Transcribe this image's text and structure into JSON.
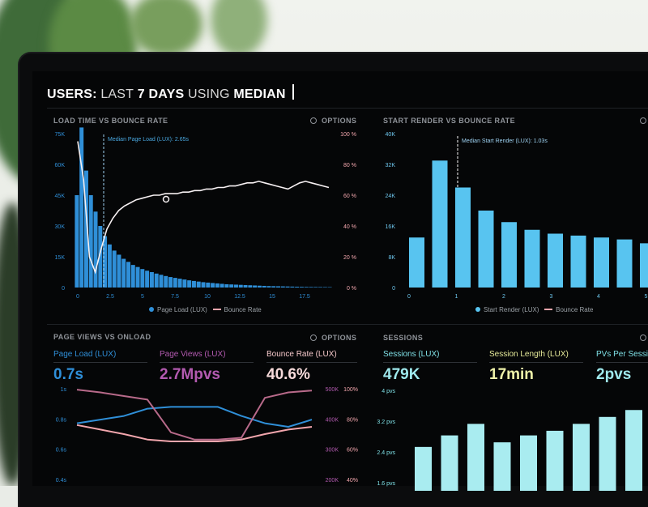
{
  "header": {
    "part1": "USERS:",
    "part2": "LAST",
    "part3": "7 DAYS",
    "part4": "USING",
    "part5": "MEDIAN"
  },
  "options_label": "OPTIONS",
  "panel_load": {
    "title": "LOAD TIME VS BOUNCE RATE",
    "annotation": "Median Page Load (LUX): 2.65s",
    "legend_bar": "Page Load (LUX)",
    "legend_line": "Bounce Rate"
  },
  "panel_render": {
    "title": "START RENDER VS BOUNCE RATE",
    "annotation": "Median Start Render (LUX): 1.03s",
    "legend_bar": "Start Render (LUX)",
    "legend_line": "Bounce Rate"
  },
  "panel_pageviews": {
    "title": "PAGE VIEWS VS ONLOAD",
    "metrics": [
      {
        "label": "Page Load (LUX)",
        "value": "0.7s",
        "color": "#2f8fd8"
      },
      {
        "label": "Page Views (LUX)",
        "value": "2.7Mpvs",
        "color": "#b35ab0"
      },
      {
        "label": "Bounce Rate (LUX)",
        "value": "40.6%",
        "color": "#f2c9c9"
      }
    ]
  },
  "panel_sessions": {
    "title": "SESSIONS",
    "metrics": [
      {
        "label": "Sessions (LUX)",
        "value": "479K",
        "color": "#7fe0e6"
      },
      {
        "label": "Session Length (LUX)",
        "value": "17min",
        "color": "#e6ea9a"
      },
      {
        "label": "PVs Per Sessio",
        "value": "2pvs",
        "color": "#7fe0e6"
      }
    ]
  },
  "chart_data": [
    {
      "type": "bar",
      "title": "LOAD TIME VS BOUNCE RATE",
      "x_ticks": [
        "0",
        "2.5",
        "5",
        "7.5",
        "10",
        "12.5",
        "15",
        "17.5"
      ],
      "y_left_ticks": [
        "0",
        "15K",
        "30K",
        "45K",
        "60K",
        "75K"
      ],
      "y_right_ticks": [
        "0 %",
        "20 %",
        "40 %",
        "60 %",
        "80 %",
        "100 %"
      ],
      "bar_values": [
        45000,
        78000,
        57000,
        45000,
        37000,
        30000,
        25000,
        21000,
        18000,
        16000,
        14000,
        12500,
        11000,
        10000,
        9000,
        8200,
        7500,
        6800,
        6200,
        5600,
        5100,
        4700,
        4300,
        3900,
        3500,
        3200,
        2900,
        2600,
        2400,
        2200,
        2000,
        1800,
        1600,
        1500,
        1400,
        1300,
        1200,
        1100,
        1000,
        900,
        800,
        700,
        650,
        600,
        550,
        500,
        450,
        400,
        350,
        300,
        280,
        260,
        240,
        220,
        200
      ],
      "bounce_rate": [
        95,
        70,
        20,
        10,
        25,
        38,
        45,
        50,
        53,
        55,
        57,
        58,
        59,
        60,
        60,
        61,
        61,
        61,
        62,
        62,
        63,
        63,
        64,
        64,
        65,
        65,
        66,
        66,
        67,
        68,
        68,
        69,
        68,
        67,
        66,
        65,
        64,
        66,
        68,
        69,
        68,
        67,
        66,
        65
      ],
      "ylim_left": [
        0,
        75000
      ],
      "ylim_right": [
        0,
        100
      ],
      "legend": [
        "Page Load (LUX)",
        "Bounce Rate"
      ]
    },
    {
      "type": "bar",
      "title": "START RENDER VS BOUNCE RATE",
      "x_ticks": [
        "0",
        "1",
        "2",
        "3",
        "4",
        "5"
      ],
      "y_left_ticks": [
        "0",
        "8K",
        "16K",
        "24K",
        "32K",
        "40K"
      ],
      "bar_values": [
        13000,
        33000,
        26000,
        20000,
        17000,
        15000,
        14000,
        13500,
        13000,
        12500,
        11500
      ],
      "ylim_left": [
        0,
        40000
      ],
      "legend": [
        "Start Render (LUX)",
        "Bounce Rate"
      ]
    },
    {
      "type": "line",
      "title": "PAGE VIEWS VS ONLOAD",
      "y_left_ticks": [
        "1s",
        "0.8s",
        "0.6s",
        "0.4s"
      ],
      "y_right_ticks_1": [
        "500K",
        "400K",
        "300K",
        "200K"
      ],
      "y_right_ticks_2": [
        "100%",
        "80%",
        "60%",
        "40%"
      ],
      "series": [
        {
          "name": "Page Load (LUX)",
          "values": [
            0.62,
            0.66,
            0.7,
            0.78,
            0.8,
            0.8,
            0.8,
            0.7,
            0.62,
            0.58,
            0.66
          ]
        },
        {
          "name": "Page Views (LUX)",
          "values": [
            0.99,
            0.96,
            0.92,
            0.88,
            0.52,
            0.44,
            0.44,
            0.46,
            0.9,
            0.96,
            0.98
          ]
        },
        {
          "name": "Bounce Rate (LUX)",
          "values": [
            0.6,
            0.55,
            0.5,
            0.44,
            0.42,
            0.42,
            0.42,
            0.44,
            0.5,
            0.55,
            0.58
          ]
        }
      ]
    },
    {
      "type": "bar",
      "title": "SESSIONS",
      "y_left_ticks": [
        "4 pvs",
        "3.2 pvs",
        "2.4 pvs",
        "1.6 pvs"
      ],
      "bar_values": [
        1.9,
        2.4,
        2.9,
        2.1,
        2.4,
        2.6,
        2.9,
        3.2,
        3.5
      ]
    }
  ]
}
